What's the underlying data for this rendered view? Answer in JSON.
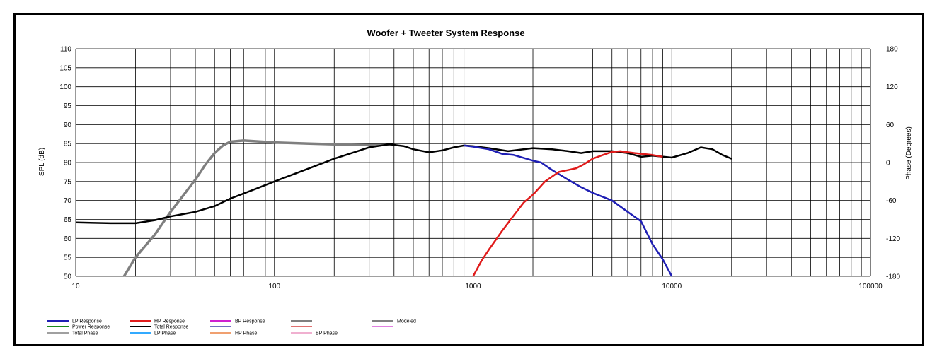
{
  "chart_data": {
    "type": "line",
    "title": "Woofer + Tweeter    System Response",
    "xlabel": "",
    "ylabel": "SPL (dB)",
    "y2label": "Phase (Degrees)",
    "xscale": "log",
    "xlim": [
      10,
      100000
    ],
    "ylim": [
      50,
      110
    ],
    "y2lim": [
      -180,
      180
    ],
    "grid": true,
    "x_tick_labels": [
      "10",
      "100",
      "1000",
      "10000",
      "100000"
    ],
    "y_tick_labels": [
      "110",
      "105",
      "100",
      "95",
      "90",
      "85",
      "80",
      "75",
      "70",
      "65",
      "60",
      "55",
      "50"
    ],
    "y2_tick_labels": [
      "180",
      "120",
      "60",
      "0",
      "-60",
      "-120",
      "-180"
    ],
    "series": [
      {
        "name": "LP Response",
        "color": "#1f1fb4",
        "x": [
          900,
          1000,
          1200,
          1400,
          1600,
          2000,
          2200,
          2500,
          3000,
          3500,
          4000,
          5000,
          6000,
          7000,
          8000,
          9000,
          10000
        ],
        "y": [
          84.5,
          84.2,
          83.5,
          82.3,
          82.0,
          80.5,
          80.0,
          78.0,
          75.5,
          73.5,
          72.0,
          70.0,
          67.0,
          64.5,
          58.5,
          54.5,
          50.0
        ]
      },
      {
        "name": "HP Response",
        "color": "#e01b1b",
        "x": [
          1000,
          1100,
          1200,
          1400,
          1600,
          1800,
          2000,
          2300,
          2700,
          3000,
          3300,
          3600,
          4000,
          4500,
          5000,
          5500,
          6500,
          8000,
          9000
        ],
        "y": [
          50.0,
          54.0,
          57.0,
          62.0,
          66.0,
          69.5,
          71.5,
          75.0,
          77.5,
          78.0,
          78.5,
          79.5,
          81.0,
          82.0,
          82.8,
          83.0,
          82.5,
          82.0,
          81.5
        ]
      },
      {
        "name": "BP Response",
        "color": "#d020d0",
        "x": [],
        "y": []
      },
      {
        "name": "Modeled",
        "color": "#7f7f7f",
        "x": [
          17.5,
          20,
          25,
          30,
          35,
          40,
          45,
          50,
          55,
          60,
          70,
          80,
          100,
          150,
          200,
          300,
          400
        ],
        "y": [
          50.0,
          55.0,
          61.0,
          67.0,
          71.5,
          75.5,
          79.5,
          82.5,
          84.5,
          85.5,
          85.8,
          85.6,
          85.3,
          85.0,
          84.8,
          84.6,
          84.6
        ]
      },
      {
        "name": "Power Response",
        "color": "#1a8a1a",
        "x": [],
        "y": []
      },
      {
        "name": "Total Response",
        "color": "#000000",
        "x": [
          10,
          15,
          20,
          25,
          30,
          40,
          50,
          60,
          80,
          100,
          150,
          200,
          300,
          380,
          450,
          500,
          600,
          700,
          800,
          900,
          1000,
          1200,
          1500,
          2000,
          2500,
          3000,
          3500,
          4000,
          5000,
          6000,
          7000,
          8000,
          10000,
          12000,
          14000,
          16000,
          18000,
          20000
        ],
        "y": [
          64.2,
          64.0,
          64.0,
          64.8,
          65.8,
          67.0,
          68.5,
          70.5,
          73.0,
          75.0,
          78.5,
          81.0,
          84.0,
          84.8,
          84.3,
          83.5,
          82.7,
          83.2,
          84.0,
          84.5,
          84.3,
          83.8,
          83.0,
          83.8,
          83.5,
          83.0,
          82.5,
          83.0,
          83.0,
          82.5,
          81.5,
          81.8,
          81.3,
          82.5,
          84.0,
          83.5,
          82.0,
          81.0
        ]
      },
      {
        "name": "Total Phase",
        "color": "#a0a0a0",
        "x": [],
        "y": []
      },
      {
        "name": "LP Phase",
        "color": "#33aaff",
        "x": [],
        "y": []
      },
      {
        "name": "HP Phase",
        "color": "#f0a070",
        "x": [],
        "y": []
      },
      {
        "name": "BP Phase",
        "color": "#f0b0d0",
        "x": [],
        "y": []
      }
    ],
    "legend": {
      "position": "bottom-left",
      "entries": [
        {
          "label": "LP Response",
          "color": "#1f1fb4"
        },
        {
          "label": "HP Response",
          "color": "#e01b1b"
        },
        {
          "label": "BP Response",
          "color": "#d020d0"
        },
        {
          "label": "",
          "color": "#7f7f7f"
        },
        {
          "label": "Modeled",
          "color": "#7f7f7f"
        },
        {
          "label": "Power Response",
          "color": "#1a8a1a"
        },
        {
          "label": "Total Response",
          "color": "#000000"
        },
        {
          "label": "",
          "color": "#7070c0"
        },
        {
          "label": "",
          "color": "#e07070"
        },
        {
          "label": "",
          "color": "#e080e0"
        },
        {
          "label": "Total Phase",
          "color": "#a0a0a0"
        },
        {
          "label": "LP Phase",
          "color": "#33aaff"
        },
        {
          "label": "HP Phase",
          "color": "#f0a070"
        },
        {
          "label": "BP Phase",
          "color": "#f0b0d0"
        }
      ]
    }
  }
}
